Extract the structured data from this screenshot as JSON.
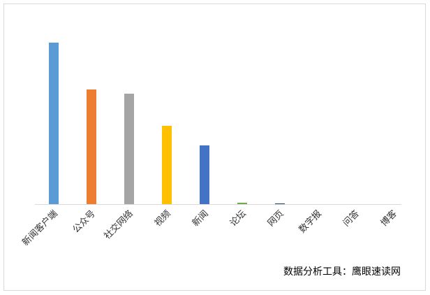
{
  "chart_data": {
    "type": "bar",
    "categories": [
      "新闻客户端",
      "公众号",
      "社交网络",
      "视频",
      "新闻",
      "论坛",
      "网页",
      "数字报",
      "问答",
      "博客"
    ],
    "values": [
      231,
      164,
      158,
      112,
      84,
      2,
      1,
      0,
      0,
      0
    ],
    "colors": [
      "#5b9bd5",
      "#ed7d31",
      "#a5a5a5",
      "#ffc000",
      "#4472c4",
      "#70ad47",
      "#264478",
      "#9e480e",
      "#636363",
      "#997300"
    ],
    "ylim": [
      0,
      250
    ],
    "source": "数据分析工具：鹰眼速读网"
  }
}
